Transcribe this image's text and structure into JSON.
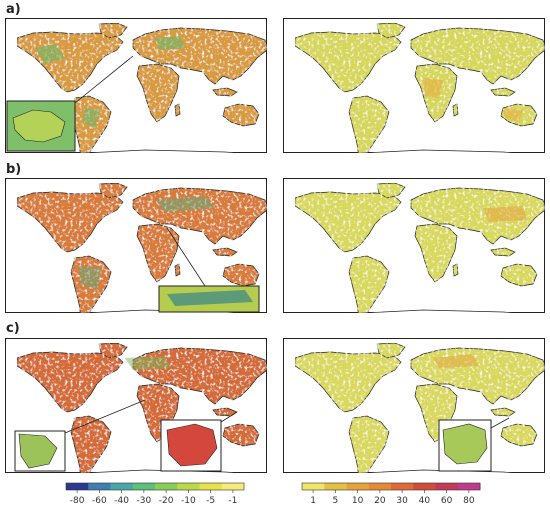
{
  "panels": [
    {
      "label": "a)"
    },
    {
      "label": "b)"
    },
    {
      "label": "c)"
    }
  ],
  "colorbars": [
    {
      "id": "left",
      "ticks": [
        "-80",
        "-60",
        "-40",
        "-30",
        "-20",
        "-10",
        "-5",
        "-1"
      ],
      "colors": [
        "#2b3a8f",
        "#3f7fb0",
        "#4aa7a8",
        "#5cbf7c",
        "#89ce5a",
        "#bcd94a",
        "#e6e24a",
        "#f3ec7a"
      ]
    },
    {
      "id": "right",
      "ticks": [
        "1",
        "5",
        "10",
        "20",
        "30",
        "40",
        "60",
        "80"
      ],
      "colors": [
        "#efe56a",
        "#e4c142",
        "#e6a33a",
        "#e48a36",
        "#df6a35",
        "#d24c3c",
        "#c23a58",
        "#c23a8a"
      ]
    }
  ]
}
